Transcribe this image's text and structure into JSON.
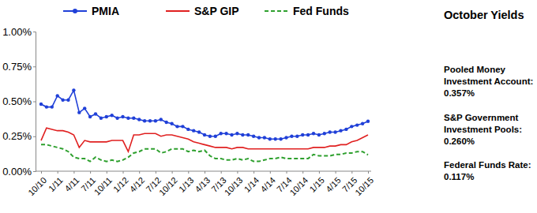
{
  "chart_data": {
    "type": "line",
    "title": "October Yields",
    "annotations": [
      "Pooled Money",
      "Investment Account:",
      "0.357%",
      "S&P Government",
      "Investment Pools:",
      "0.260%",
      "Federal Funds Rate:",
      "0.117%"
    ],
    "categories": [
      "10/10",
      null,
      null,
      "1/11",
      null,
      null,
      "4/11",
      null,
      null,
      "7/11",
      null,
      null,
      "10/11",
      null,
      null,
      "1/12",
      null,
      null,
      "4/12",
      null,
      null,
      "7/12",
      null,
      null,
      "10/12",
      null,
      null,
      "1/13",
      null,
      null,
      "4/13",
      null,
      null,
      "7/13",
      null,
      null,
      "10/13",
      null,
      null,
      "1/14",
      null,
      null,
      "4/14",
      null,
      null,
      "7/14",
      null,
      null,
      "10/14",
      null,
      null,
      "1/15",
      null,
      null,
      "4/15",
      null,
      null,
      "7/15",
      null,
      null,
      "10/15"
    ],
    "series": [
      {
        "name": "PMIA",
        "color": "#2040d8",
        "marker": "circle",
        "line_style": "solid",
        "values": [
          0.48,
          0.46,
          0.46,
          0.54,
          0.51,
          0.51,
          0.58,
          0.42,
          0.45,
          0.39,
          0.41,
          0.38,
          0.39,
          0.4,
          0.38,
          0.39,
          0.38,
          0.38,
          0.37,
          0.36,
          0.36,
          0.36,
          0.37,
          0.35,
          0.34,
          0.32,
          0.32,
          0.3,
          0.29,
          0.28,
          0.26,
          0.25,
          0.25,
          0.27,
          0.27,
          0.26,
          0.27,
          0.26,
          0.26,
          0.25,
          0.24,
          0.24,
          0.23,
          0.23,
          0.23,
          0.24,
          0.25,
          0.25,
          0.26,
          0.26,
          0.27,
          0.26,
          0.27,
          0.28,
          0.28,
          0.29,
          0.3,
          0.32,
          0.33,
          0.34,
          0.357
        ]
      },
      {
        "name": "S&P GIP",
        "color": "#e02020",
        "marker": "none",
        "line_style": "solid",
        "values": [
          0.22,
          0.31,
          0.3,
          0.29,
          0.29,
          0.28,
          0.26,
          0.17,
          0.22,
          0.21,
          0.21,
          0.21,
          0.21,
          0.22,
          0.22,
          0.22,
          0.14,
          0.26,
          0.26,
          0.27,
          0.27,
          0.27,
          0.25,
          0.26,
          0.26,
          0.25,
          0.24,
          0.23,
          0.21,
          0.2,
          0.19,
          0.18,
          0.17,
          0.17,
          0.17,
          0.16,
          0.17,
          0.17,
          0.16,
          0.16,
          0.16,
          0.16,
          0.16,
          0.16,
          0.16,
          0.16,
          0.16,
          0.16,
          0.16,
          0.16,
          0.17,
          0.17,
          0.17,
          0.18,
          0.18,
          0.19,
          0.19,
          0.21,
          0.22,
          0.24,
          0.26
        ]
      },
      {
        "name": "Fed Funds",
        "color": "#2ea02e",
        "marker": "none",
        "line_style": "dashed",
        "values": [
          0.19,
          0.19,
          0.18,
          0.17,
          0.16,
          0.14,
          0.1,
          0.09,
          0.09,
          0.07,
          0.1,
          0.08,
          0.07,
          0.08,
          0.07,
          0.08,
          0.1,
          0.13,
          0.14,
          0.16,
          0.16,
          0.16,
          0.13,
          0.14,
          0.16,
          0.16,
          0.16,
          0.14,
          0.15,
          0.14,
          0.15,
          0.11,
          0.09,
          0.09,
          0.08,
          0.08,
          0.09,
          0.08,
          0.09,
          0.07,
          0.07,
          0.08,
          0.09,
          0.09,
          0.1,
          0.09,
          0.09,
          0.09,
          0.09,
          0.09,
          0.12,
          0.11,
          0.11,
          0.11,
          0.12,
          0.12,
          0.13,
          0.13,
          0.14,
          0.14,
          0.117
        ]
      }
    ],
    "ylim": [
      0,
      1
    ],
    "yticks": [
      {
        "value": 0,
        "label": "0.00%"
      },
      {
        "value": 0.25,
        "label": "0.25%"
      },
      {
        "value": 0.5,
        "label": "0.50%"
      },
      {
        "value": 0.75,
        "label": "0.75%"
      },
      {
        "value": 1,
        "label": "1.00%"
      }
    ],
    "grid": false,
    "legend": "top"
  }
}
